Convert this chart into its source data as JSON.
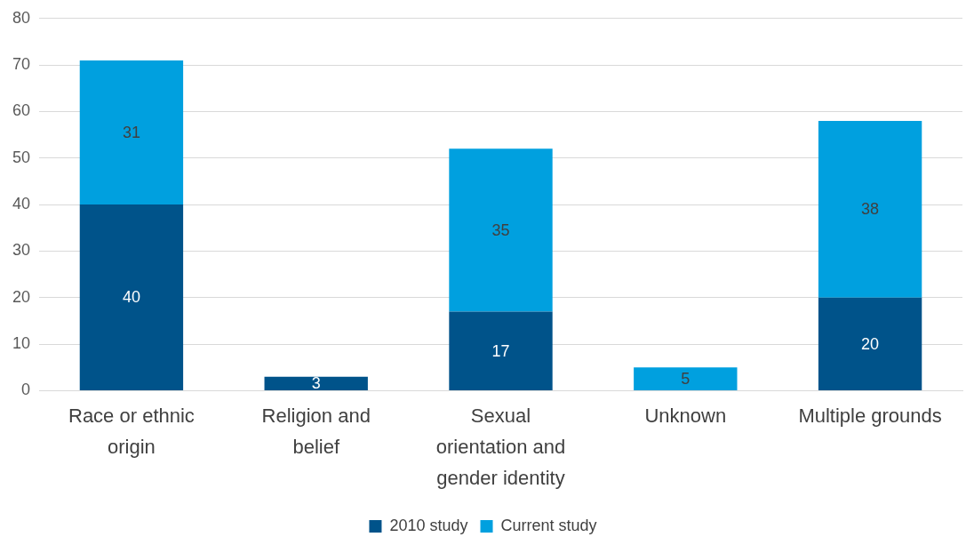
{
  "chart_data": {
    "type": "bar",
    "stacked": true,
    "categories": [
      "Race or ethnic origin",
      "Religion and belief",
      "Sexual orientation and gender identity",
      "Unknown",
      "Multiple grounds"
    ],
    "series": [
      {
        "name": "2010 study",
        "color": "#00538a",
        "values": [
          40,
          3,
          17,
          null,
          20
        ]
      },
      {
        "name": "Current study",
        "color": "#00a0df",
        "values": [
          31,
          null,
          35,
          5,
          38
        ]
      }
    ],
    "ylim": [
      0,
      80
    ],
    "yticks": [
      0,
      10,
      20,
      30,
      40,
      50,
      60,
      70,
      80
    ],
    "grid": "y",
    "legend": "bottom",
    "data_labels": true
  }
}
